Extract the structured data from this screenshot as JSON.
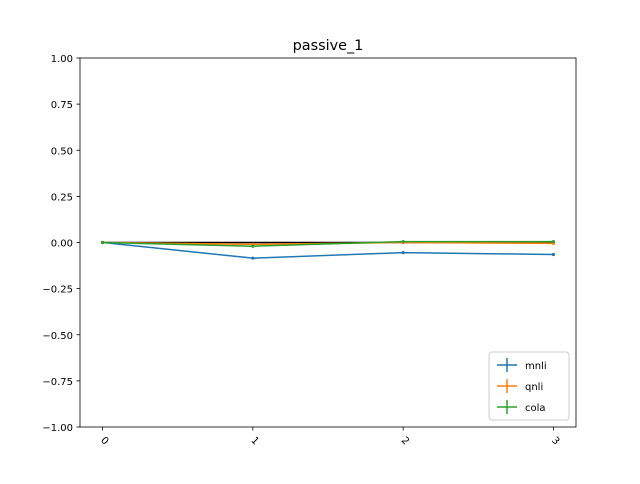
{
  "chart_data": {
    "type": "line",
    "title": "passive_1",
    "xlabel": "",
    "ylabel": "",
    "x": [
      0,
      1,
      2,
      3
    ],
    "x_tick_labels": [
      "0",
      "1",
      "2",
      "3"
    ],
    "xlim": [
      -0.15,
      3.15
    ],
    "ylim": [
      -1.0,
      1.0
    ],
    "y_ticks": [
      -1.0,
      -0.75,
      -0.5,
      -0.25,
      0.0,
      0.25,
      0.5,
      0.75,
      1.0
    ],
    "y_tick_labels": [
      "−1.00",
      "−0.75",
      "−0.50",
      "−0.25",
      "0.00",
      "0.25",
      "0.50",
      "0.75",
      "1.00"
    ],
    "grid": false,
    "legend_position": "lower-right",
    "series": [
      {
        "name": "mnli",
        "color": "#1f77b4",
        "values": [
          0.0,
          -0.085,
          -0.055,
          -0.065
        ]
      },
      {
        "name": "qnli",
        "color": "#ff7f0e",
        "values": [
          0.0,
          -0.01,
          0.0,
          -0.005
        ]
      },
      {
        "name": "cola",
        "color": "#2ca02c",
        "values": [
          0.0,
          -0.02,
          0.005,
          0.005
        ]
      }
    ],
    "reference_line": {
      "color": "#000000",
      "value": 0.0
    }
  }
}
